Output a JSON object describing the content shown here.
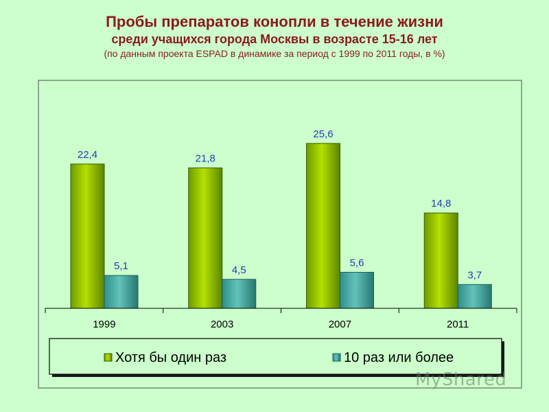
{
  "title": "Пробы препаратов конопли в течение жизни",
  "subtitle": "среди учащихся города Москвы в возрасте 15-16 лет",
  "note": "(по данным проекта ESPAD в динамике за период с 1999 по 2011 годы, в %)",
  "watermark": "MyShared",
  "chart_data": {
    "type": "bar",
    "categories": [
      "1999",
      "2003",
      "2007",
      "2011"
    ],
    "series": [
      {
        "name": "Хотя бы один раз",
        "values": [
          22.4,
          21.8,
          25.6,
          14.8
        ],
        "labels": [
          "22,4",
          "21,8",
          "25,6",
          "14,8"
        ],
        "color": "#9acd00"
      },
      {
        "name": "10 раз или более",
        "values": [
          5.1,
          4.5,
          5.6,
          3.7
        ],
        "labels": [
          "5,1",
          "4,5",
          "5,6",
          "3,7"
        ],
        "color": "#3aa39a"
      }
    ],
    "ylim": [
      0,
      30
    ],
    "grid": false,
    "legend_position": "bottom",
    "label_color": "#1f3fb0"
  }
}
